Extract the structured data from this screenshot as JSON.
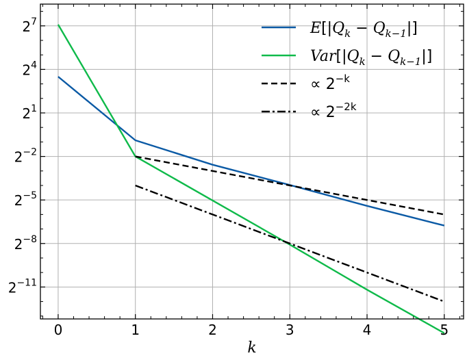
{
  "chart_data": {
    "type": "line",
    "xlabel": "k",
    "ylabel": "",
    "title": "",
    "xlim": [
      -0.23,
      5.25
    ],
    "ylim_log2": [
      -13.2,
      8.5
    ],
    "y_scale": "log2",
    "grid": true,
    "legend_position": "top-right",
    "x_ticks": [
      0,
      1,
      2,
      3,
      4,
      5
    ],
    "x_tick_labels": [
      "0",
      "1",
      "2",
      "3",
      "4",
      "5"
    ],
    "y_ticks": [
      {
        "value": 128,
        "exp": "7"
      },
      {
        "value": 16,
        "exp": "4"
      },
      {
        "value": 2,
        "exp": "1"
      },
      {
        "value": 0.25,
        "exp": "−2"
      },
      {
        "value": 0.03125,
        "exp": "−5"
      },
      {
        "value": 0.00390625,
        "exp": "−8"
      },
      {
        "value": 0.00048828125,
        "exp": "−11"
      }
    ],
    "y_tick_base": "2",
    "series": [
      {
        "name": "E[|Q_k − Q_{k−1}|]",
        "legend_label": "E[|Qk − Qk−1|]",
        "color": "#0b5aa5",
        "style": "solid",
        "x": [
          0,
          1,
          2,
          3,
          4,
          5
        ],
        "y": [
          11.3,
          0.54,
          0.168,
          0.064,
          0.0236,
          0.0092
        ]
      },
      {
        "name": "Var[|Q_k − Q_{k−1}|]",
        "legend_label": "Var[|Qk − Qk−1|]",
        "color": "#0fba4a",
        "style": "solid",
        "x": [
          0,
          1,
          2,
          3,
          4,
          5
        ],
        "y": [
          136,
          0.25,
          0.0305,
          0.0037,
          0.00043,
          5.4e-05
        ]
      },
      {
        "name": "∝ 2^{−k}",
        "legend_label": "∝ 2−k",
        "color": "#000000",
        "style": "dashed",
        "x": [
          1,
          2,
          3,
          4,
          5
        ],
        "y": [
          0.25,
          0.125,
          0.0625,
          0.03125,
          0.015625
        ]
      },
      {
        "name": "∝ 2^{−2k}",
        "legend_label": "∝ 2−2k",
        "color": "#000000",
        "style": "dashdot",
        "x": [
          1,
          2,
          3,
          4,
          5
        ],
        "y": [
          0.0625,
          0.015625,
          0.00390625,
          0.0009765625,
          0.000244140625
        ]
      }
    ]
  }
}
